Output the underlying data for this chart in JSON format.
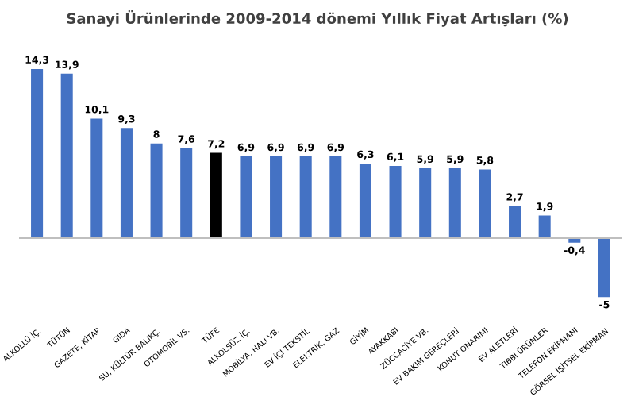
{
  "chart_data": {
    "type": "bar",
    "title": "Sanayi Ürünlerinde 2009-2014 dönemi Yıllık Fiyat Artışları (%)",
    "categories": [
      "ALKOLLÜ İÇ.",
      "TÜTÜN",
      "GAZETE, KİTAP",
      "GIDA",
      "SU, KÜLTÜR BALIKÇ.",
      "OTOMOBİL VS.",
      "TÜFE",
      "ALKOLSÜZ İÇ.",
      "MOBİLYA, HALI VB.",
      "EV İÇİ TEKSTİL",
      "ELEKTRİK, GAZ",
      "GİYİM",
      "AYAKKABI",
      "ZÜCCACİYE VB.",
      "EV BAKIM GEREÇLERİ",
      "KONUT ONARIMI",
      "EV ALETLERİ",
      "TIBBİ ÜRÜNLER",
      "TELEFON EKİPMANI",
      "GÖRSEL İŞİTSEL EKİPMAN"
    ],
    "values": [
      14.3,
      13.9,
      10.1,
      9.3,
      8,
      7.6,
      7.2,
      6.9,
      6.9,
      6.9,
      6.9,
      6.3,
      6.1,
      5.9,
      5.9,
      5.8,
      2.7,
      1.9,
      -0.4,
      -5
    ],
    "value_labels": [
      "14,3",
      "13,9",
      "10,1",
      "9,3",
      "8",
      "7,6",
      "7,2",
      "6,9",
      "6,9",
      "6,9",
      "6,9",
      "6,3",
      "6,1",
      "5,9",
      "5,9",
      "5,8",
      "2,7",
      "1,9",
      "-0,4",
      "-5"
    ],
    "colors": [
      "#4472c4",
      "#4472c4",
      "#4472c4",
      "#4472c4",
      "#4472c4",
      "#4472c4",
      "#000000",
      "#4472c4",
      "#4472c4",
      "#4472c4",
      "#4472c4",
      "#4472c4",
      "#4472c4",
      "#4472c4",
      "#4472c4",
      "#4472c4",
      "#4472c4",
      "#4472c4",
      "#4472c4",
      "#4472c4"
    ],
    "tick_labels": "x",
    "grid": false,
    "legend": false
  }
}
